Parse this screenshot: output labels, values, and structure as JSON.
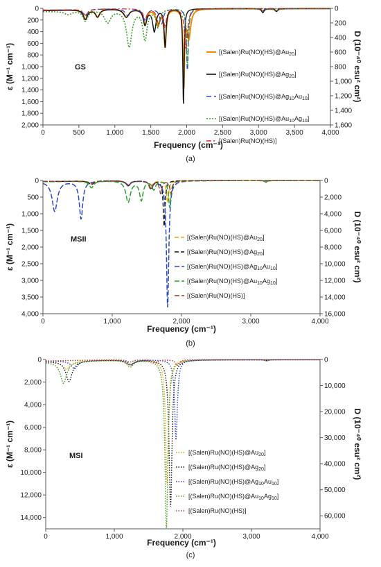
{
  "chart_data": [
    {
      "type": "line",
      "caption": "(a)",
      "state": "GS",
      "xlabel": "Frequency (cm⁻¹)",
      "ylabel": "ε (M⁻¹ cm⁻¹)",
      "y2label": "D (10⁻⁴⁰ esu² cm²)",
      "xlim": [
        0,
        4000
      ],
      "ylim": [
        0,
        2000
      ],
      "y2lim": [
        0,
        1600
      ],
      "y_inverted": true,
      "xticks": [
        "0",
        "500",
        "1,000",
        "1,500",
        "2,000",
        "2,500",
        "3,000",
        "3,500",
        "4,000"
      ],
      "yticks": [
        "0",
        "200",
        "400",
        "600",
        "800",
        "1,000",
        "1,200",
        "1,400",
        "1,600",
        "1,800",
        "2,000"
      ],
      "y2ticks": [
        "0",
        "200",
        "400",
        "600",
        "800",
        "1,000",
        "1,200",
        "1,400",
        "1,600"
      ],
      "legend_position": "right",
      "series": [
        {
          "name": "[(Salen)Ru(NO)(HS)@Au20]",
          "legend_parts": [
            [
              "[(Salen)Ru(NO)(HS)@Au",
              ""
            ],
            [
              "20",
              "sub"
            ],
            [
              "]",
              ""
            ]
          ],
          "color": "#f08c00",
          "dash": "solid",
          "width": 2,
          "baseline": 30,
          "peaks": [
            [
              590,
              160,
              35
            ],
            [
              760,
              130,
              35
            ],
            [
              1160,
              140,
              45
            ],
            [
              1420,
              260,
              30
            ],
            [
              1600,
              280,
              30
            ],
            [
              1700,
              640,
              18
            ],
            [
              1960,
              1280,
              12
            ],
            [
              2030,
              500,
              30
            ],
            [
              3060,
              40,
              25
            ],
            [
              3250,
              40,
              25
            ]
          ]
        },
        {
          "name": "[(Salen)Ru(NO)(HS)@Ag20]",
          "legend_parts": [
            [
              "[(Salen)Ru(NO)(HS)@Ag",
              ""
            ],
            [
              "20",
              "sub"
            ],
            [
              "]",
              ""
            ]
          ],
          "color": "#111111",
          "dash": "solid",
          "width": 1.4,
          "baseline": 30,
          "peaks": [
            [
              590,
              170,
              35
            ],
            [
              760,
              130,
              35
            ],
            [
              1160,
              140,
              45
            ],
            [
              1420,
              270,
              30
            ],
            [
              1550,
              380,
              28
            ],
            [
              1700,
              650,
              16
            ],
            [
              1955,
              1640,
              11
            ],
            [
              3060,
              70,
              20
            ],
            [
              3250,
              50,
              20
            ]
          ]
        },
        {
          "name": "[(Salen)Ru(NO)(HS)@Ag10Au10]",
          "legend_parts": [
            [
              "[(Salen)Ru(NO)(HS)@Ag",
              ""
            ],
            [
              "10",
              "sub"
            ],
            [
              "Au",
              ""
            ],
            [
              "10",
              "sub"
            ],
            [
              "]",
              ""
            ]
          ],
          "color": "#2a46c8",
          "dash": "7,4",
          "width": 1.3,
          "baseline": 25,
          "peaks": [
            [
              590,
              120,
              35
            ],
            [
              1180,
              120,
              40
            ],
            [
              1420,
              220,
              30
            ],
            [
              1650,
              260,
              30
            ],
            [
              2010,
              1070,
              16
            ],
            [
              3060,
              40,
              20
            ]
          ]
        },
        {
          "name": "[(Salen)Ru(NO)(HS)@Au10Ag10]",
          "legend_parts": [
            [
              "[(Salen)Ru(NO)(HS)@Au",
              ""
            ],
            [
              "10",
              "sub"
            ],
            [
              "Ag",
              ""
            ],
            [
              "10",
              "sub"
            ],
            [
              "]",
              ""
            ]
          ],
          "color": "#3a9a2a",
          "dash": "2,2",
          "width": 1.6,
          "baseline": 45,
          "peaks": [
            [
              350,
              60,
              60
            ],
            [
              590,
              180,
              40
            ],
            [
              900,
              220,
              55
            ],
            [
              1200,
              640,
              45
            ],
            [
              1420,
              520,
              35
            ],
            [
              1600,
              300,
              30
            ],
            [
              2010,
              980,
              14
            ],
            [
              3240,
              40,
              25
            ]
          ]
        },
        {
          "name": "[(Salen)Ru(NO)(HS)]",
          "legend_parts": [
            [
              "[(Salen)Ru(NO)(HS)]",
              ""
            ]
          ],
          "color": "#d02020",
          "dash": "7,3,2,3",
          "width": 1.2,
          "baseline": 25,
          "peaks": [
            [
              590,
              100,
              35
            ],
            [
              1420,
              180,
              30
            ],
            [
              1610,
              250,
              30
            ],
            [
              1700,
              300,
              20
            ],
            [
              1990,
              700,
              25
            ]
          ]
        }
      ]
    },
    {
      "type": "line",
      "caption": "(b)",
      "state": "MSII",
      "xlabel": "Frequency (cm⁻¹)",
      "ylabel": "ε (M⁻¹ cm⁻¹)",
      "y2label": "D (10⁻⁴⁰ esu² cm²)",
      "xlim": [
        0,
        4000
      ],
      "ylim": [
        0,
        4000
      ],
      "y2lim": [
        0,
        16000
      ],
      "y_inverted": true,
      "xticks": [
        "0",
        "1,000",
        "2,000",
        "3,000",
        "4,000"
      ],
      "yticks": [
        "0",
        "500",
        "1,000",
        "1,500",
        "2,000",
        "2,500",
        "3,000",
        "3,500",
        "4,000"
      ],
      "y2ticks": [
        "0",
        "2,000",
        "4,000",
        "6,000",
        "8,000",
        "10,000",
        "12,000",
        "14,000",
        "16,000"
      ],
      "legend_position": "right",
      "series": [
        {
          "name": "[(Salen)Ru(NO)(HS)@Au20]",
          "legend_parts": [
            [
              "[(Salen)Ru(NO)(HS)@Au",
              ""
            ],
            [
              "20",
              "sub"
            ],
            [
              "]",
              ""
            ]
          ],
          "color": "#f0a800",
          "dash": "6,3",
          "width": 1.4,
          "baseline": 25,
          "peaks": [
            [
              700,
              120,
              40
            ],
            [
              1230,
              160,
              40
            ],
            [
              1550,
              240,
              30
            ],
            [
              1800,
              650,
              20
            ],
            [
              3220,
              40,
              20
            ]
          ]
        },
        {
          "name": "[(Salen)Ru(NO)(HS)@Ag20]",
          "legend_parts": [
            [
              "[(Salen)Ru(NO)(HS)@Ag",
              ""
            ],
            [
              "20",
              "sub"
            ],
            [
              "]",
              ""
            ]
          ],
          "color": "#111111",
          "dash": "6,3",
          "width": 1.4,
          "baseline": 25,
          "peaks": [
            [
              700,
              110,
              40
            ],
            [
              1230,
              150,
              40
            ],
            [
              1560,
              260,
              30
            ],
            [
              1750,
              1380,
              16
            ],
            [
              3220,
              50,
              20
            ]
          ]
        },
        {
          "name": "[(Salen)Ru(NO)(HS)@Ag10Au10]",
          "legend_parts": [
            [
              "[(Salen)Ru(NO)(HS)@Ag",
              ""
            ],
            [
              "10",
              "sub"
            ],
            [
              "Au",
              ""
            ],
            [
              "10",
              "sub"
            ],
            [
              "]",
              ""
            ]
          ],
          "color": "#2a46c8",
          "dash": "7,3",
          "width": 1.5,
          "baseline": 25,
          "peaks": [
            [
              170,
              900,
              45
            ],
            [
              550,
              1130,
              30
            ],
            [
              1230,
              140,
              40
            ],
            [
              1560,
              220,
              30
            ],
            [
              1800,
              3800,
              20
            ]
          ]
        },
        {
          "name": "[(Salen)Ru(NO)(HS)@Au10Ag10]",
          "legend_parts": [
            [
              "[(Salen)Ru(NO)(HS)@Au",
              ""
            ],
            [
              "10",
              "sub"
            ],
            [
              "Ag",
              ""
            ],
            [
              "10",
              "sub"
            ],
            [
              "]",
              ""
            ]
          ],
          "color": "#2aa02a",
          "dash": "7,3",
          "width": 1.5,
          "baseline": 30,
          "peaks": [
            [
              700,
              200,
              40
            ],
            [
              1230,
              640,
              40
            ],
            [
              1420,
              580,
              30
            ],
            [
              1600,
              260,
              30
            ],
            [
              1830,
              800,
              20
            ],
            [
              3220,
              40,
              20
            ]
          ]
        },
        {
          "name": "[(Salen)Ru(NO)(HS)]",
          "legend_parts": [
            [
              "[(Salen)Ru(NO)(HS)]",
              ""
            ]
          ],
          "color": "#8a3a1a",
          "dash": "7,3",
          "width": 1.3,
          "baseline": 25,
          "peaks": [
            [
              700,
              90,
              40
            ],
            [
              1230,
              120,
              40
            ],
            [
              1560,
              220,
              30
            ],
            [
              1700,
              380,
              22
            ],
            [
              1850,
              380,
              22
            ]
          ]
        }
      ]
    },
    {
      "type": "line",
      "caption": "(c)",
      "state": "MSI",
      "xlabel": "Frequency (cm⁻¹)",
      "ylabel": "ε (M⁻¹ cm⁻¹)",
      "y2label": "D (10⁻⁴⁰ esu² cm²)",
      "xlim": [
        0,
        4000
      ],
      "ylim": [
        0,
        15000
      ],
      "y2lim": [
        0,
        65000
      ],
      "y_inverted": true,
      "xticks": [
        "0",
        "1,000",
        "2,000",
        "3,000",
        "4,000"
      ],
      "yticks": [
        "0",
        "2,000",
        "4,000",
        "6,000",
        "8,000",
        "10,000",
        "12,000",
        "14,000"
      ],
      "y2ticks": [
        "0",
        "10,000",
        "20,000",
        "30,000",
        "40,000",
        "50,000",
        "60,000"
      ],
      "legend_position": "right",
      "series": [
        {
          "name": "[(Salen)Ru(NO)(HS)@Au20]",
          "legend_parts": [
            [
              "[(Salen)Ru(NO)(HS)@Au",
              ""
            ],
            [
              "20",
              "sub"
            ],
            [
              "]",
              ""
            ]
          ],
          "color": "#e0a000",
          "dash": "1.5,2",
          "width": 1.4,
          "baseline": 150,
          "peaks": [
            [
              300,
              700,
              70
            ],
            [
              1230,
              400,
              60
            ],
            [
              1770,
              11000,
              25
            ],
            [
              3220,
              80,
              25
            ]
          ]
        },
        {
          "name": "[(Salen)Ru(NO)(HS)@Ag20]",
          "legend_parts": [
            [
              "[(Salen)Ru(NO)(HS)@Ag",
              ""
            ],
            [
              "20",
              "sub"
            ],
            [
              "]",
              ""
            ]
          ],
          "color": "#111111",
          "dash": "1.5,2",
          "width": 1.4,
          "baseline": 150,
          "peaks": [
            [
              340,
              1800,
              55
            ],
            [
              1230,
              450,
              60
            ],
            [
              1820,
              13000,
              26
            ],
            [
              3220,
              80,
              25
            ]
          ]
        },
        {
          "name": "[(Salen)Ru(NO)(HS)@Ag10Au10]",
          "legend_parts": [
            [
              "[(Salen)Ru(NO)(HS)@Ag",
              ""
            ],
            [
              "10",
              "sub"
            ],
            [
              "Au",
              ""
            ],
            [
              "10",
              "sub"
            ],
            [
              "]",
              ""
            ]
          ],
          "color": "#2a3ac8",
          "dash": "1.5,2",
          "width": 1.4,
          "baseline": 120,
          "peaks": [
            [
              420,
              700,
              60
            ],
            [
              1250,
              400,
              60
            ],
            [
              1900,
              7100,
              24
            ]
          ]
        },
        {
          "name": "[(Salen)Ru(NO)(HS)@Au10Ag10]",
          "legend_parts": [
            [
              "[(Salen)Ru(NO)(HS)@Au",
              ""
            ],
            [
              "10",
              "sub"
            ],
            [
              "Ag",
              ""
            ],
            [
              "10",
              "sub"
            ],
            [
              "]",
              ""
            ]
          ],
          "color": "#4a9a1a",
          "dash": "1.5,2",
          "width": 1.4,
          "baseline": 200,
          "peaks": [
            [
              260,
              1900,
              55
            ],
            [
              1230,
              600,
              60
            ],
            [
              1760,
              14900,
              26
            ],
            [
              3220,
              100,
              25
            ]
          ]
        },
        {
          "name": "[(Salen)Ru(NO)(HS)]",
          "legend_parts": [
            [
              "[(Salen)Ru(NO)(HS)]",
              ""
            ]
          ],
          "color": "#c03030",
          "dash": "1.5,2",
          "width": 1.4,
          "baseline": 100,
          "peaks": [
            [
              1230,
              200,
              50
            ],
            [
              1600,
              300,
              40
            ],
            [
              1920,
              500,
              35
            ]
          ]
        }
      ]
    }
  ]
}
